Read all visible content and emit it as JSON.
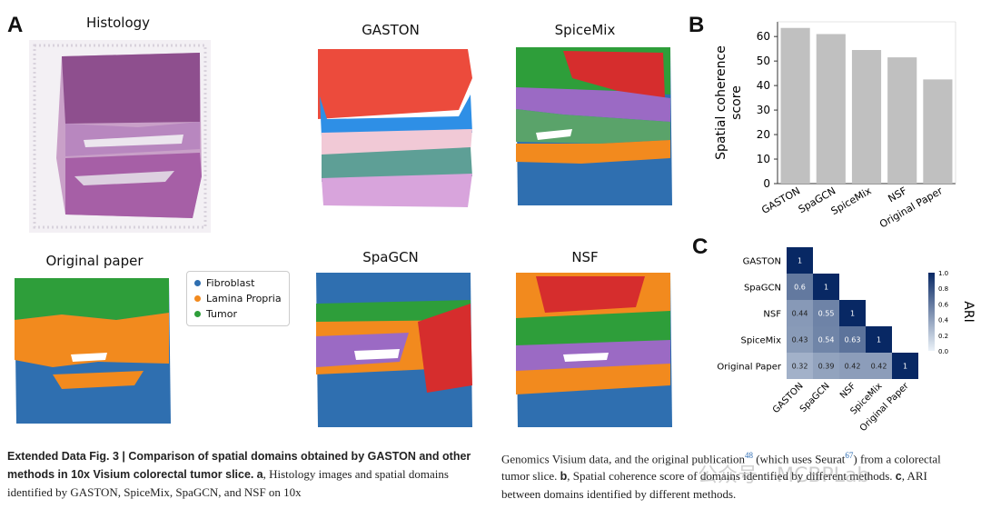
{
  "panels": {
    "a": {
      "letter": "A"
    },
    "b": {
      "letter": "B"
    },
    "c": {
      "letter": "C"
    }
  },
  "maps": {
    "histology": "Histology",
    "gaston": "GASTON",
    "spicemix": "SpiceMix",
    "original": "Original paper",
    "spagcn": "SpaGCN",
    "nsf": "NSF"
  },
  "legend": [
    {
      "label": "Fibroblast",
      "color": "#2f6fb0"
    },
    {
      "label": "Lamina Propria",
      "color": "#f28a1e"
    },
    {
      "label": "Tumor",
      "color": "#2e9e3a"
    }
  ],
  "colors": {
    "blue": "#2f6fb0",
    "orange": "#f28a1e",
    "green": "#2e9e3a",
    "red": "#d62d2d",
    "purple": "#9b6ac4",
    "teal": "#5e9f96",
    "pink": "#f1c9d6",
    "lilac": "#d8a4dc",
    "skyblue": "#2e8fe6",
    "gaston_red": "#ec4b3c",
    "bar": "#c0c0c0"
  },
  "chart_data": [
    {
      "type": "bar",
      "categories": [
        "GASTON",
        "SpaGCN",
        "SpiceMix",
        "NSF",
        "Original Paper"
      ],
      "values": [
        63.5,
        61,
        54.5,
        51.5,
        42.5
      ],
      "ylabel": "Spatial coherence score",
      "ylabel_lines": [
        "Spatial coherence",
        "score"
      ],
      "ylim": [
        0,
        66
      ],
      "yticks": [
        0,
        10,
        20,
        30,
        40,
        50,
        60
      ],
      "grid": false
    },
    {
      "type": "heatmap",
      "labels": [
        "GASTON",
        "SpaGCN",
        "NSF",
        "SpiceMix",
        "Original Paper"
      ],
      "matrix": [
        [
          1,
          null,
          null,
          null,
          null
        ],
        [
          0.6,
          1,
          null,
          null,
          null
        ],
        [
          0.44,
          0.55,
          1,
          null,
          null
        ],
        [
          0.43,
          0.54,
          0.63,
          1,
          null
        ],
        [
          0.32,
          0.39,
          0.42,
          0.42,
          1
        ]
      ],
      "colorbar_label": "ARI",
      "colorbar_ticks": [
        0.0,
        0.2,
        0.4,
        0.6,
        0.8,
        1.0
      ],
      "colorbar_tick_labels": [
        "0.0",
        "0.2",
        "0.4",
        "0.6",
        "0.8",
        "1.0"
      ]
    }
  ],
  "caption": {
    "left": {
      "bold": "Extended Data Fig. 3 | Comparison of spatial domains obtained by GASTON and other methods in 10x Visium colorectal tumor slice.",
      "a_label": "a",
      "a_text": ", Histology images and spatial domains identified by GASTON, SpiceMix, SpaGCN, and NSF on 10x"
    },
    "right": {
      "t1": "Genomics Visium data, and the original publication",
      "ref1": "48",
      "t2": " (which uses Seurat",
      "ref2": "67",
      "t3": ") from a colorectal tumor slice. ",
      "b_label": "b",
      "t4": ", Spatial coherence score of domains identified by different methods. ",
      "c_label": "c",
      "t5": ", ARI between domains identified by different methods."
    }
  },
  "watermark": "公众号 · MCBPLab"
}
